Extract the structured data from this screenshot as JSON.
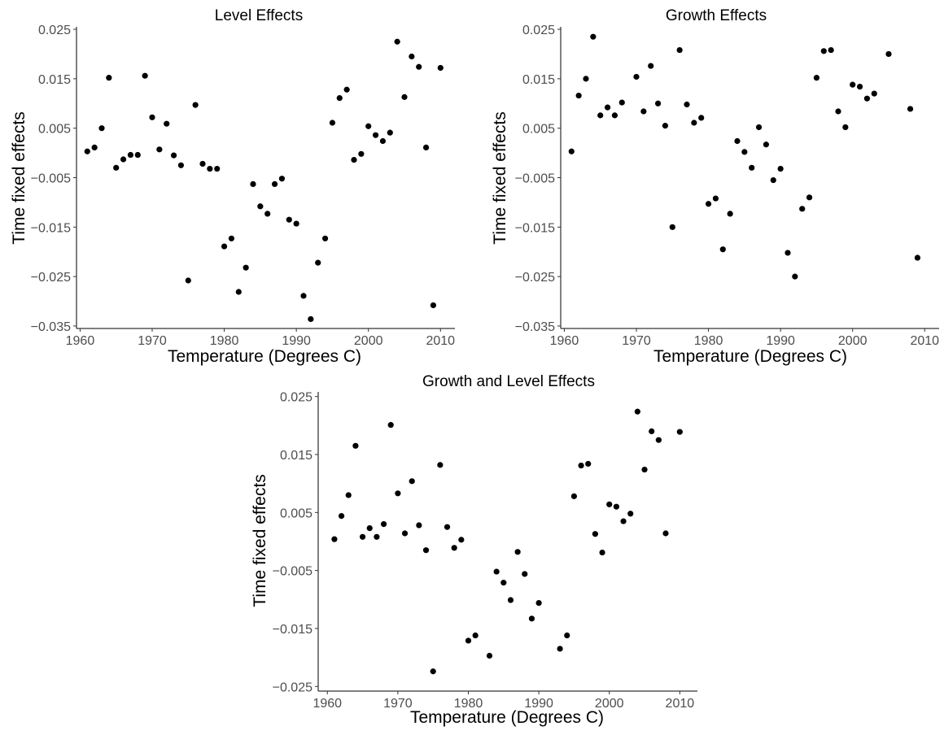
{
  "chart_data": [
    {
      "type": "scatter",
      "title": "Level Effects",
      "xlabel": "Temperature (Degrees C)",
      "ylabel": "Time fixed effects",
      "xlim": [
        1959.5,
        2012
      ],
      "ylim": [
        -0.0355,
        0.0255
      ],
      "xticks": [
        1960,
        1970,
        1980,
        1990,
        2000,
        2010
      ],
      "xtick_labels": [
        "1960",
        "1970",
        "1980",
        "1990",
        "2000",
        "2010"
      ],
      "yticks": [
        0.025,
        0.015,
        0.005,
        -0.005,
        -0.015,
        -0.025,
        -0.035
      ],
      "ytick_labels": [
        "0.025",
        "0.015",
        "0.005",
        "−0.005",
        "−0.015",
        "−0.025",
        "−0.035"
      ],
      "grid": false,
      "series": [
        {
          "x": [
            1961,
            1962,
            1963,
            1964,
            1965,
            1966,
            1967,
            1968,
            1969,
            1970,
            1971,
            1972,
            1973,
            1974,
            1975,
            1976,
            1977,
            1978,
            1979,
            1980,
            1981,
            1982,
            1983,
            1984,
            1985,
            1986,
            1987,
            1988,
            1989,
            1990,
            1991,
            1992,
            1993,
            1994,
            1995,
            1996,
            1997,
            1998,
            1999,
            2000,
            2001,
            2002,
            2003,
            2004,
            2005,
            2006,
            2007,
            2008,
            2009,
            2010
          ],
          "y": [
            0.0003,
            0.0011,
            0.005,
            0.0152,
            -0.003,
            -0.0013,
            -0.0004,
            -0.0004,
            0.0156,
            0.0072,
            0.0007,
            0.0059,
            -0.0005,
            -0.0025,
            -0.0258,
            0.0097,
            -0.0022,
            -0.0032,
            -0.0032,
            -0.0189,
            -0.0173,
            -0.0281,
            -0.0232,
            -0.0063,
            -0.0108,
            -0.0123,
            -0.0063,
            -0.0052,
            -0.0135,
            -0.0143,
            -0.0289,
            -0.0336,
            -0.0222,
            -0.0173,
            0.0061,
            0.0111,
            0.0128,
            -0.0014,
            -0.0002,
            0.0054,
            0.0036,
            0.0024,
            0.0041,
            0.0225,
            0.0113,
            0.0195,
            0.0174,
            0.0011,
            -0.0308,
            0.0172
          ]
        }
      ]
    },
    {
      "type": "scatter",
      "title": "Growth Effects",
      "xlabel": "Temperature (Degrees C)",
      "ylabel": "Time fixed effects",
      "xlim": [
        1959.5,
        2012
      ],
      "ylim": [
        -0.0355,
        0.0255
      ],
      "xticks": [
        1960,
        1970,
        1980,
        1990,
        2000,
        2010
      ],
      "xtick_labels": [
        "1960",
        "1970",
        "1980",
        "1990",
        "2000",
        "2010"
      ],
      "yticks": [
        0.025,
        0.015,
        0.005,
        -0.005,
        -0.015,
        -0.025,
        -0.035
      ],
      "ytick_labels": [
        "0.025",
        "0.015",
        "0.005",
        "−0.005",
        "−0.015",
        "−0.025",
        "−0.035"
      ],
      "grid": false,
      "series": [
        {
          "x": [
            1961,
            1962,
            1963,
            1964,
            1965,
            1966,
            1967,
            1968,
            1970,
            1971,
            1972,
            1973,
            1974,
            1975,
            1976,
            1977,
            1978,
            1979,
            1980,
            1981,
            1982,
            1983,
            1984,
            1985,
            1986,
            1987,
            1988,
            1989,
            1990,
            1991,
            1992,
            1993,
            1994,
            1995,
            1996,
            1997,
            1998,
            1999,
            2000,
            2001,
            2002,
            2003,
            2005,
            2008,
            2009
          ],
          "y": [
            0.0003,
            0.0116,
            0.015,
            0.0235,
            0.0076,
            0.0092,
            0.0076,
            0.0102,
            0.0154,
            0.0084,
            0.0176,
            0.01,
            0.0055,
            -0.015,
            0.0208,
            0.0098,
            0.0061,
            0.0071,
            -0.0103,
            -0.0092,
            -0.0195,
            -0.0123,
            0.0024,
            0.0002,
            -0.003,
            0.0052,
            0.0017,
            -0.0055,
            -0.0032,
            -0.0202,
            -0.025,
            -0.0113,
            -0.009,
            0.0152,
            0.0206,
            0.0208,
            0.0084,
            0.0052,
            0.0138,
            0.0134,
            0.011,
            0.012,
            0.02,
            0.0089,
            -0.0212
          ]
        }
      ]
    },
    {
      "type": "scatter",
      "title": "Growth and Level Effects",
      "xlabel": "Temperature (Degrees C)",
      "ylabel": "Time fixed effects",
      "xlim": [
        1958.7,
        2012.5
      ],
      "ylim": [
        -0.0258,
        0.0258
      ],
      "xticks": [
        1960,
        1970,
        1980,
        1990,
        2000,
        2010
      ],
      "xtick_labels": [
        "1960",
        "1970",
        "1980",
        "1990",
        "2000",
        "2010"
      ],
      "yticks": [
        0.025,
        0.015,
        0.005,
        -0.005,
        -0.015,
        -0.025
      ],
      "ytick_labels": [
        "0.025",
        "0.015",
        "0.005",
        "−0.005",
        "−0.015",
        "−0.025"
      ],
      "grid": false,
      "series": [
        {
          "x": [
            1961,
            1962,
            1963,
            1964,
            1965,
            1966,
            1967,
            1968,
            1969,
            1970,
            1971,
            1972,
            1973,
            1974,
            1975,
            1976,
            1977,
            1978,
            1979,
            1980,
            1981,
            1983,
            1984,
            1985,
            1986,
            1987,
            1988,
            1989,
            1990,
            1993,
            1994,
            1995,
            1996,
            1997,
            1998,
            1999,
            2000,
            2001,
            2002,
            2003,
            2004,
            2005,
            2006,
            2007,
            2008,
            2010
          ],
          "y": [
            0.0004,
            0.0044,
            0.008,
            0.0165,
            0.0008,
            0.0023,
            0.0008,
            0.003,
            0.0201,
            0.0083,
            0.0014,
            0.0104,
            0.0028,
            -0.0015,
            -0.0224,
            0.0132,
            0.0025,
            -0.0011,
            0.0003,
            -0.0171,
            -0.0162,
            -0.0197,
            -0.0052,
            -0.0071,
            -0.0101,
            -0.0018,
            -0.0056,
            -0.0133,
            -0.0106,
            -0.0185,
            -0.0162,
            0.0078,
            0.0131,
            0.0134,
            0.0013,
            -0.0019,
            0.0064,
            0.006,
            0.0035,
            0.0048,
            0.0224,
            0.0124,
            0.019,
            0.0175,
            0.0014,
            0.0189
          ]
        }
      ]
    }
  ]
}
